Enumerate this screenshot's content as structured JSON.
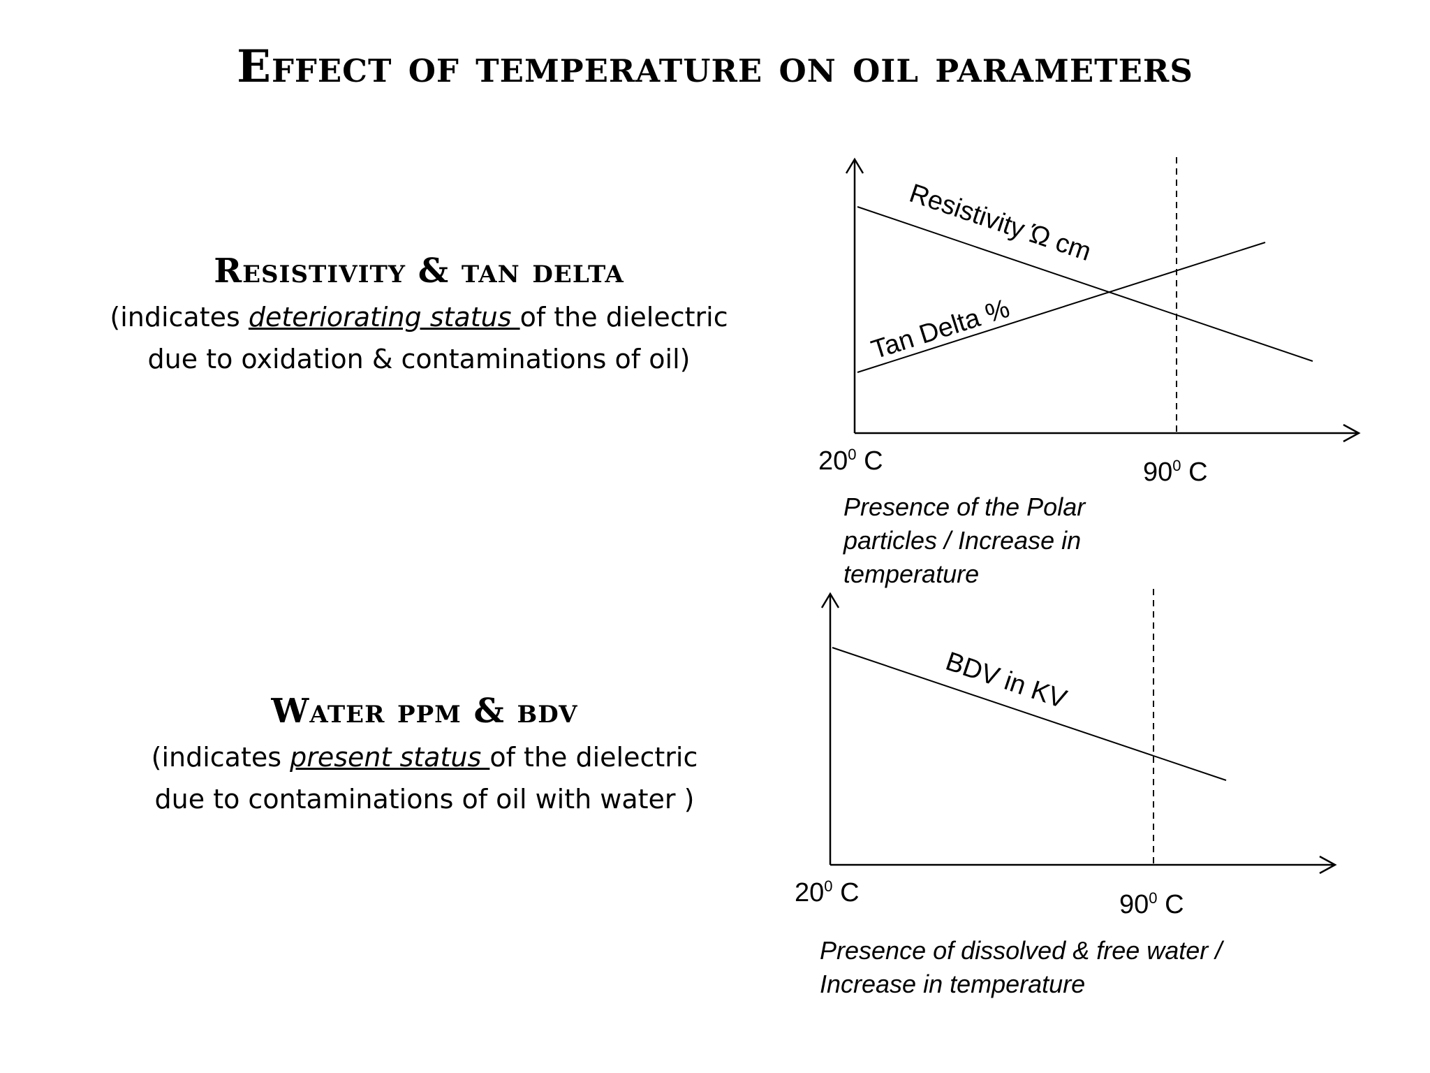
{
  "title": "Effect of temperature on oil parameters",
  "section1": {
    "heading": "Resistivity & tan delta",
    "desc_prefix": "(indicates ",
    "desc_emphasis": "deteriorating status ",
    "desc_suffix": "of the dielectric",
    "desc_line2": "due to oxidation & contaminations of oil)"
  },
  "section2": {
    "heading": "Water ppm & bdv",
    "desc_prefix": "(indicates ",
    "desc_emphasis": "present status ",
    "desc_suffix": "of the dielectric",
    "desc_line2": "due to contaminations of oil with water )"
  },
  "diagram1": {
    "x_start_label": "20",
    "x_end_label": "90",
    "degree_mark": "0",
    "unit": " C",
    "line1_label": "Resistivity Ώ cm",
    "line2_label": "Tan Delta %",
    "caption_line1": "Presence of the Polar",
    "caption_line2": "particles / Increase in",
    "caption_line3": "temperature"
  },
  "diagram2": {
    "x_start_label": "20",
    "x_end_label": "90",
    "degree_mark": "0",
    "unit": " C",
    "line1_label": "BDV in KV",
    "caption_line1": "Presence of dissolved & free water /",
    "caption_line2": "Increase in temperature"
  }
}
